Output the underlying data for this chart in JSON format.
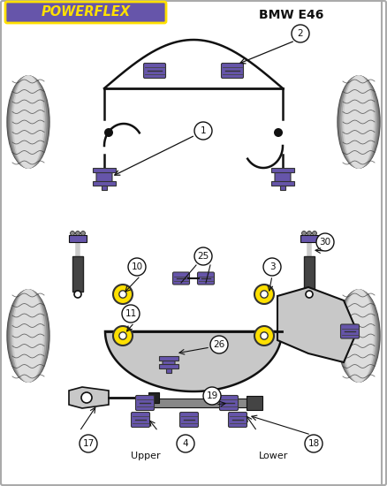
{
  "bg_color": "#ffffff",
  "purple": "#6655AA",
  "yellow": "#FFE000",
  "dark": "#111111",
  "gray_tire": "#cccccc",
  "gray_arm": "#c8c8c8",
  "shock_dark": "#333333",
  "title_text": "BMW E46",
  "logo_text": "POWERFLEX",
  "logo_bg": "#6655AA",
  "logo_border": "#FFE000",
  "bottom_left": "Upper",
  "bottom_right": "Lower",
  "border_color": "#aaaaaa"
}
